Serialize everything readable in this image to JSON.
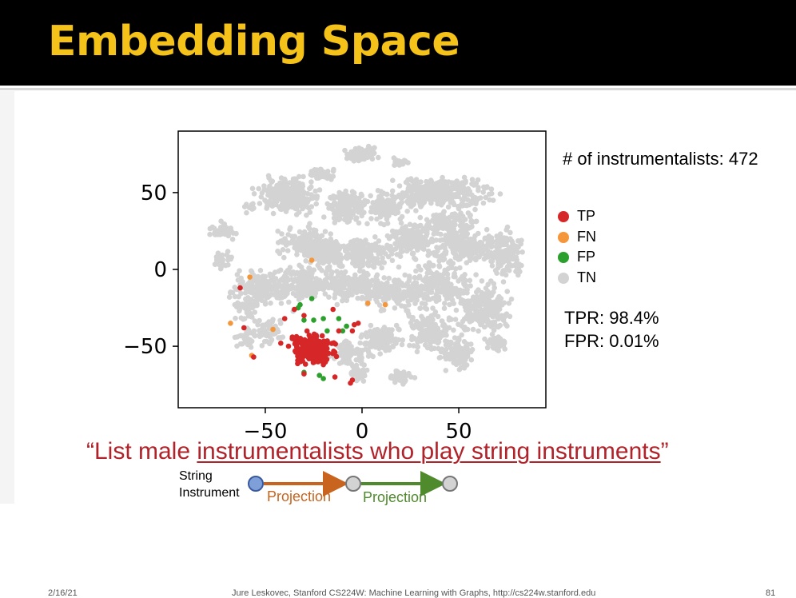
{
  "slide": {
    "title": "Embedding Space",
    "footer_date": "2/16/21",
    "footer_center": "Jure Leskovec, Stanford CS224W: Machine Learning with Graphs, http://cs224w.stanford.edu",
    "page_number": "81"
  },
  "stats": {
    "instrumentalists": "# of instrumentalists: 472",
    "tpr": "TPR: 98.4%",
    "fpr": "FPR: 0.01%"
  },
  "query": {
    "prefix": "“List male ",
    "underlined": "instrumentalists who play string instruments",
    "suffix": "”"
  },
  "diagram": {
    "node_label_line1": "String",
    "node_label_line2": "Instrument",
    "projection_1": "Projection",
    "projection_2": "Projection",
    "colors": {
      "start_node": "#7f9fd8",
      "node": "#d3d3d3",
      "arrow_1": "#c8641e",
      "arrow_2": "#4f8a2c"
    }
  },
  "chart_data": {
    "type": "scatter",
    "title": "",
    "xlabel": "",
    "ylabel": "",
    "xlim": [
      -95,
      95
    ],
    "ylim": [
      -90,
      90
    ],
    "xticks": [
      -50,
      0,
      50
    ],
    "yticks": [
      50,
      0,
      -50
    ],
    "xtick_labels": [
      "−50",
      "0",
      "50"
    ],
    "ytick_labels": [
      "50",
      "0",
      "−50"
    ],
    "legend_position": "right",
    "series": [
      {
        "name": "TP",
        "color": "#d62728",
        "clusters": [
          [
            -25,
            -52,
            10,
            9,
            220
          ]
        ],
        "points": [
          [
            -63,
            -12
          ],
          [
            -61,
            -38
          ],
          [
            -56,
            -57
          ],
          [
            -42,
            -48
          ],
          [
            -40,
            -32
          ],
          [
            -35,
            -26
          ],
          [
            -30,
            -30
          ],
          [
            -15,
            -26
          ],
          [
            -12,
            -40
          ],
          [
            -5,
            -40
          ],
          [
            -4,
            -36
          ],
          [
            -2,
            -35
          ],
          [
            -5,
            -72
          ],
          [
            -6,
            -74
          ],
          [
            -30,
            -68
          ],
          [
            -36,
            -44
          ],
          [
            -38,
            -50
          ],
          [
            -20,
            -62
          ],
          [
            -14,
            -70
          ]
        ]
      },
      {
        "name": "FN",
        "color": "#f5963a",
        "points": [
          [
            -58,
            -5
          ],
          [
            -68,
            -35
          ],
          [
            -46,
            -39
          ],
          [
            -26,
            6
          ],
          [
            3,
            -22
          ],
          [
            12,
            -23
          ],
          [
            -57,
            -56
          ]
        ]
      },
      {
        "name": "FP",
        "color": "#2ca02c",
        "points": [
          [
            -33,
            -25
          ],
          [
            -30,
            -33
          ],
          [
            -25,
            -33
          ],
          [
            -20,
            -32
          ],
          [
            -12,
            -32
          ],
          [
            -10,
            -40
          ],
          [
            -26,
            -19
          ],
          [
            -32,
            -23
          ],
          [
            -18,
            -40
          ],
          [
            -30,
            -67
          ],
          [
            -22,
            -69
          ],
          [
            -20,
            -71
          ],
          [
            -8,
            -37
          ]
        ]
      },
      {
        "name": "TN",
        "color": "#d3d3d3",
        "clusters": [
          [
            -38,
            48,
            14,
            10,
            260
          ],
          [
            -8,
            40,
            10,
            10,
            140
          ],
          [
            40,
            50,
            24,
            10,
            320
          ],
          [
            -28,
            18,
            14,
            8,
            140
          ],
          [
            0,
            10,
            14,
            9,
            160
          ],
          [
            25,
            20,
            12,
            10,
            160
          ],
          [
            55,
            15,
            18,
            10,
            220
          ],
          [
            75,
            10,
            8,
            14,
            120
          ],
          [
            -52,
            -12,
            14,
            10,
            160
          ],
          [
            -30,
            -8,
            16,
            10,
            180
          ],
          [
            -5,
            -10,
            14,
            10,
            160
          ],
          [
            18,
            -15,
            14,
            10,
            150
          ],
          [
            40,
            -10,
            16,
            14,
            220
          ],
          [
            62,
            -30,
            12,
            10,
            120
          ],
          [
            35,
            -40,
            12,
            12,
            140
          ],
          [
            10,
            -45,
            10,
            8,
            110
          ],
          [
            -5,
            -55,
            10,
            8,
            100
          ],
          [
            -72,
            25,
            6,
            5,
            40
          ],
          [
            -60,
            -25,
            6,
            8,
            50
          ],
          [
            -60,
            -45,
            5,
            6,
            30
          ],
          [
            -48,
            -40,
            8,
            8,
            60
          ],
          [
            0,
            75,
            7,
            4,
            100
          ],
          [
            20,
            70,
            4,
            3,
            20
          ],
          [
            -2,
            -68,
            4,
            4,
            30
          ],
          [
            20,
            -70,
            6,
            4,
            40
          ],
          [
            50,
            -55,
            8,
            10,
            90
          ],
          [
            70,
            -48,
            6,
            6,
            40
          ],
          [
            65,
            -20,
            10,
            12,
            90
          ],
          [
            -18,
            10,
            10,
            10,
            120
          ],
          [
            12,
            40,
            8,
            8,
            100
          ],
          [
            -20,
            62,
            6,
            4,
            40
          ],
          [
            -72,
            5,
            6,
            6,
            30
          ],
          [
            -58,
            40,
            4,
            4,
            10
          ],
          [
            45,
            30,
            14,
            8,
            120
          ]
        ]
      }
    ]
  }
}
